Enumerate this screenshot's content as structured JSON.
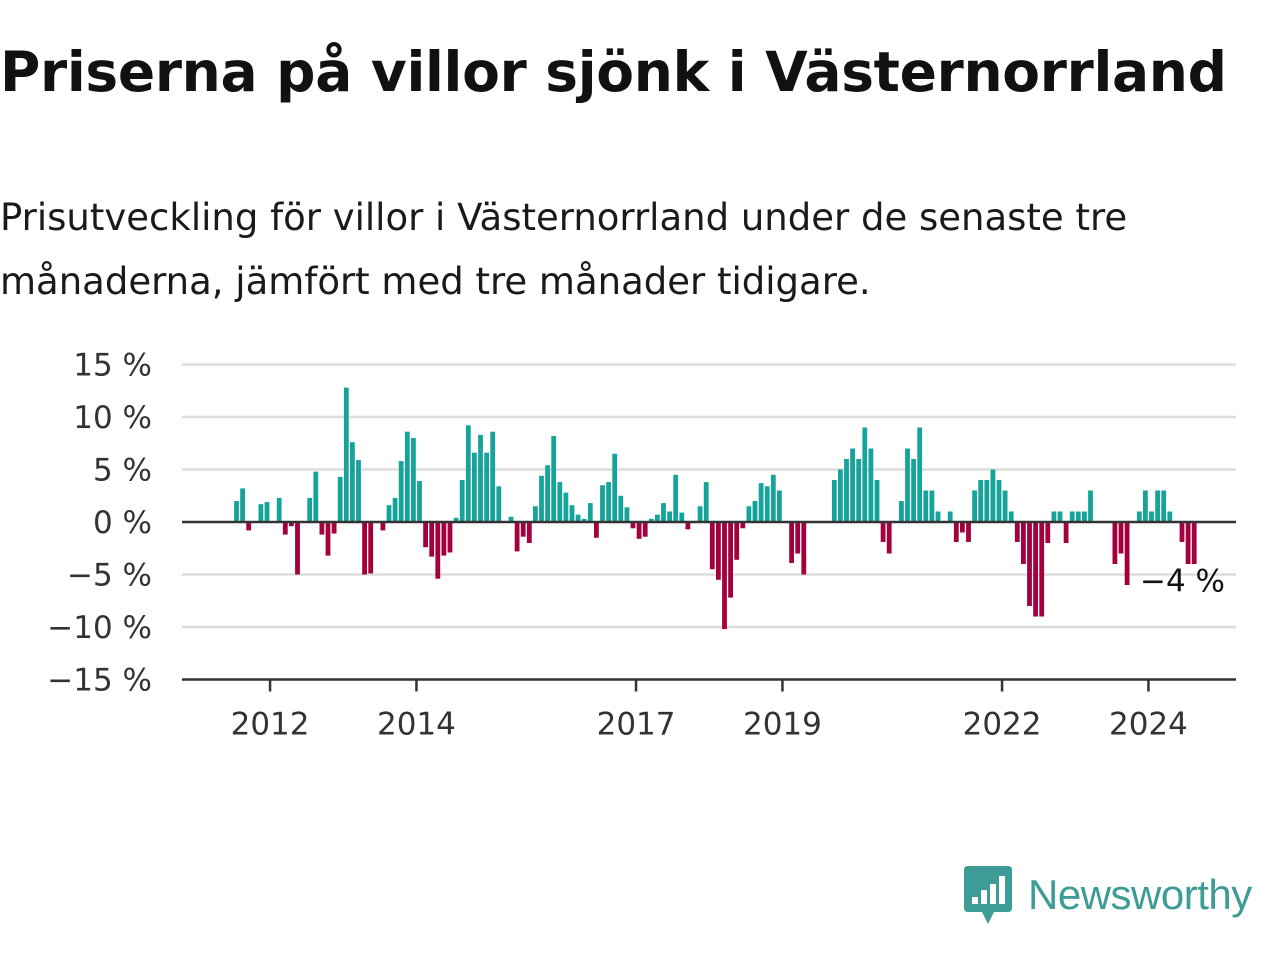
{
  "title": "Priserna på villor sjönk i Västernorrland",
  "subtitle": "Prisutveckling för villor i Västernorrland under de senaste tre månaderna, jämfört med tre månader tidigare.",
  "brand": {
    "name": "Newsworthy",
    "icon": "newsworthy-chart-logo-icon",
    "color": "#3d9c95"
  },
  "colors": {
    "positive": "#16a39a",
    "negative": "#a3003d",
    "gridline": "#dddddd",
    "axis": "#333333"
  },
  "chart_data": {
    "type": "bar",
    "unit": "%",
    "grid": true,
    "ylim": [
      -15,
      15
    ],
    "yticks": [
      {
        "value": 15,
        "label": "15 %"
      },
      {
        "value": 10,
        "label": "10 %"
      },
      {
        "value": 5,
        "label": "5 %"
      },
      {
        "value": 0,
        "label": "0 %"
      },
      {
        "value": -5,
        "label": "−5 %"
      },
      {
        "value": -10,
        "label": "−10 %"
      },
      {
        "value": -15,
        "label": "−15 %"
      }
    ],
    "xticks": [
      {
        "year": 2012,
        "label": "2012"
      },
      {
        "year": 2014,
        "label": "2014"
      },
      {
        "year": 2017,
        "label": "2017"
      },
      {
        "year": 2019,
        "label": "2019"
      },
      {
        "year": 2022,
        "label": "2022"
      },
      {
        "year": 2024,
        "label": "2024"
      }
    ],
    "x_start": "2011-07",
    "last_label": "−4 %",
    "values": [
      2,
      3.2,
      -0.8,
      0,
      1.7,
      1.9,
      0,
      2.3,
      -1.2,
      -0.4,
      -5,
      0,
      2.3,
      4.8,
      -1.2,
      -3.2,
      -1.1,
      4.3,
      12.8,
      7.6,
      5.9,
      -5,
      -4.9,
      0,
      -0.8,
      1.6,
      2.3,
      5.8,
      8.6,
      8,
      3.9,
      -2.4,
      -3.3,
      -5.4,
      -3.2,
      -2.9,
      0.4,
      4,
      9.2,
      6.6,
      8.3,
      6.6,
      8.6,
      3.4,
      0,
      0.5,
      -2.8,
      -1.4,
      -2,
      1.5,
      4.4,
      5.4,
      8.2,
      3.8,
      2.8,
      1.6,
      0.7,
      0.3,
      1.8,
      -1.5,
      3.5,
      3.8,
      6.5,
      2.5,
      1.4,
      -0.6,
      -1.6,
      -1.4,
      0.3,
      0.7,
      1.8,
      1,
      4.5,
      0.9,
      -0.7,
      0,
      1.5,
      3.8,
      -4.5,
      -5.5,
      -10.2,
      -7.2,
      -3.6,
      -0.6,
      1.5,
      2,
      3.7,
      3.4,
      4.5,
      3,
      0,
      -3.9,
      -3,
      -5,
      0,
      0,
      0,
      0,
      4,
      5,
      6,
      7,
      6,
      9,
      7,
      4,
      -1.9,
      -3,
      0,
      2,
      7,
      6,
      9,
      3,
      3,
      1,
      0,
      1,
      -1.9,
      -1,
      -1.9,
      3,
      4,
      4,
      5,
      4,
      3,
      1,
      -1.9,
      -4,
      -8,
      -9,
      -9,
      -2,
      1,
      1,
      -2,
      1,
      1,
      1,
      3,
      0,
      0,
      0,
      -4,
      -3,
      -6,
      0,
      1,
      3,
      1,
      3,
      3,
      1,
      0,
      -1.9,
      -4,
      -4
    ]
  }
}
